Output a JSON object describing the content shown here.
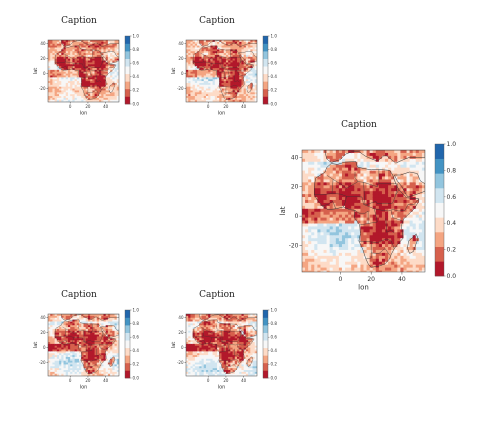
{
  "colors": {
    "scale": [
      "#b2182b",
      "#d6604d",
      "#f4a582",
      "#fddbc7",
      "#f7f7f7",
      "#d1e5f0",
      "#92c5de",
      "#4393c3",
      "#2166ac"
    ],
    "land_border": "#333333"
  },
  "chart_data": [
    {
      "type": "heatmap",
      "panel": "small-top-left",
      "title": "Caption",
      "xlabel": "lon",
      "ylabel": "lat",
      "xticks": [
        0,
        20,
        40
      ],
      "yticks": [
        -20,
        0,
        20,
        40
      ],
      "xlim": [
        -25,
        55
      ],
      "ylim": [
        -38,
        45
      ],
      "colorbar": {
        "ticks": [
          "0.0",
          "0.2",
          "0.4",
          "0.6",
          "0.8",
          "1.0"
        ],
        "range": [
          0,
          1
        ]
      }
    },
    {
      "type": "heatmap",
      "panel": "small-top-right",
      "title": "Caption",
      "xlabel": "lon",
      "ylabel": "lat",
      "xticks": [
        0,
        20,
        40
      ],
      "yticks": [
        -20,
        0,
        20,
        40
      ],
      "xlim": [
        -25,
        55
      ],
      "ylim": [
        -38,
        45
      ],
      "colorbar": {
        "ticks": [
          "0.0",
          "0.2",
          "0.4",
          "0.6",
          "0.8",
          "1.0"
        ],
        "range": [
          0,
          1
        ]
      }
    },
    {
      "type": "heatmap",
      "panel": "large-right",
      "title": "Caption",
      "xlabel": "lon",
      "ylabel": "lat",
      "xticks": [
        0,
        20,
        40
      ],
      "yticks": [
        -20,
        0,
        20,
        40
      ],
      "xlim": [
        -25,
        55
      ],
      "ylim": [
        -38,
        45
      ],
      "colorbar": {
        "ticks": [
          "0.0",
          "0.2",
          "0.4",
          "0.6",
          "0.8",
          "1.0"
        ],
        "range": [
          0,
          1
        ]
      }
    },
    {
      "type": "heatmap",
      "panel": "small-bottom-left",
      "title": "Caption",
      "xlabel": "lon",
      "ylabel": "lat",
      "xticks": [
        0,
        20,
        40
      ],
      "yticks": [
        -20,
        0,
        20,
        40
      ],
      "xlim": [
        -25,
        55
      ],
      "ylim": [
        -38,
        45
      ],
      "colorbar": {
        "ticks": [
          "0.0",
          "0.2",
          "0.4",
          "0.6",
          "0.8",
          "1.0"
        ],
        "range": [
          0,
          1
        ]
      }
    },
    {
      "type": "heatmap",
      "panel": "small-bottom-right",
      "title": "Caption",
      "xlabel": "lon",
      "ylabel": "lat",
      "xticks": [
        0,
        20,
        40
      ],
      "yticks": [
        -20,
        0,
        20,
        40
      ],
      "xlim": [
        -25,
        55
      ],
      "ylim": [
        -38,
        45
      ],
      "colorbar": {
        "ticks": [
          "0.0",
          "0.2",
          "0.4",
          "0.6",
          "0.8",
          "1.0"
        ],
        "range": [
          0,
          1
        ]
      }
    }
  ]
}
